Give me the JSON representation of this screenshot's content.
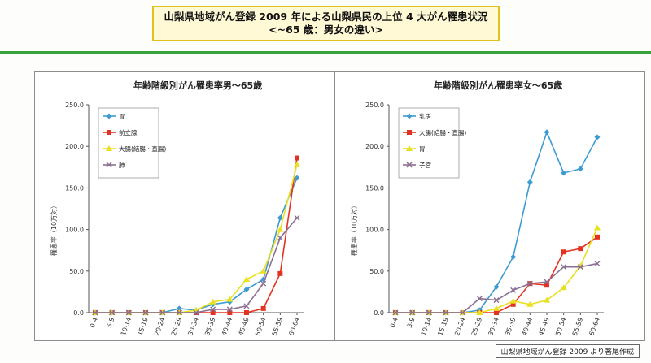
{
  "header": {
    "line1": "山梨県地域がん登録 2009 年による山梨県民の上位 4 大がん罹患状況",
    "line2": "<~65 歳：男女の違い>"
  },
  "footnote": "山梨県地域がん登録 2009 より著尾作成",
  "chart_data": [
    {
      "type": "line",
      "title": "年齢階級別がん罹患率男～65歳",
      "ylabel": "罹患率（10万対）",
      "ylim": [
        0,
        250
      ],
      "yticks": [
        "250.0",
        "200.0",
        "150.0",
        "100.0",
        "50.0",
        "0.0"
      ],
      "categories": [
        "0-4",
        "5-9",
        "10-14",
        "15-19",
        "20-24",
        "25-29",
        "30-34",
        "35-39",
        "40-44",
        "45-49",
        "50-54",
        "55-59",
        "60-64"
      ],
      "legend": "top-left",
      "series": [
        {
          "name": "胃",
          "color": "#3d9bd1",
          "marker": "diamond",
          "values": [
            0,
            0,
            0,
            0,
            0,
            5,
            3,
            10,
            13,
            28,
            40,
            114,
            162
          ]
        },
        {
          "name": "前立腺",
          "color": "#e33320",
          "marker": "square",
          "values": [
            0,
            0,
            0,
            0,
            0,
            0,
            0,
            0,
            0,
            0,
            5,
            47,
            186
          ]
        },
        {
          "name": "大腸(結腸・直腸)",
          "color": "#e8e020",
          "marker": "triangle",
          "values": [
            0,
            0,
            0,
            0,
            0,
            0,
            3,
            13,
            16,
            40,
            50,
            100,
            178
          ]
        },
        {
          "name": "肺",
          "color": "#8a6f93",
          "marker": "x",
          "values": [
            0,
            0,
            0,
            0,
            0,
            0,
            0,
            4,
            4,
            8,
            35,
            90,
            114
          ]
        }
      ]
    },
    {
      "type": "line",
      "title": "年齢階級別がん罹患率女～65歳",
      "ylabel": "罹患率（10万対）",
      "ylim": [
        0,
        250
      ],
      "yticks": [
        "250.0",
        "200.0",
        "150.0",
        "100.0",
        "50.0",
        "0.0"
      ],
      "categories": [
        "0-4",
        "5-9",
        "10-14",
        "15-19",
        "20-24",
        "25-29",
        "30-34",
        "35-39",
        "40-44",
        "45-49",
        "50-54",
        "55-59",
        "60-64"
      ],
      "legend": "top-left",
      "series": [
        {
          "name": "乳房",
          "color": "#3d9bd1",
          "marker": "diamond",
          "values": [
            0,
            0,
            0,
            0,
            0,
            3,
            31,
            67,
            157,
            217,
            168,
            173,
            211
          ]
        },
        {
          "name": "大腸(結腸・直腸)",
          "color": "#e33320",
          "marker": "square",
          "values": [
            0,
            0,
            0,
            0,
            0,
            0,
            0,
            10,
            35,
            33,
            73,
            77,
            91
          ]
        },
        {
          "name": "胃",
          "color": "#e8e020",
          "marker": "triangle",
          "values": [
            0,
            0,
            0,
            0,
            0,
            0,
            5,
            14,
            10,
            15,
            30,
            56,
            102
          ]
        },
        {
          "name": "子宮",
          "color": "#8a6f93",
          "marker": "x",
          "values": [
            0,
            0,
            0,
            0,
            0,
            17,
            15,
            27,
            35,
            37,
            55,
            55,
            59
          ]
        }
      ]
    }
  ]
}
